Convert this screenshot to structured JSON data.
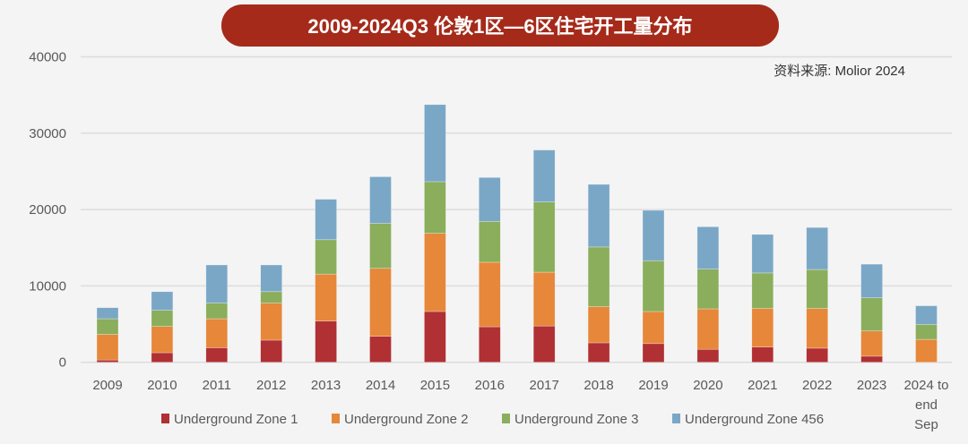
{
  "chart_data": {
    "type": "bar",
    "stacked": true,
    "title": "2009-2024Q3 伦敦1区—6区住宅开工量分布",
    "source": "资料来源: Molior 2024",
    "xlabel": "",
    "ylabel": "",
    "ylim": [
      0,
      40000
    ],
    "yticks": [
      "0",
      "10000",
      "20000",
      "30000",
      "40000"
    ],
    "grid": true,
    "legend_position": "bottom",
    "categories": [
      "2009",
      "2010",
      "2011",
      "2012",
      "2013",
      "2014",
      "2015",
      "2016",
      "2017",
      "2018",
      "2019",
      "2020",
      "2021",
      "2022",
      "2023",
      [
        "2024 to",
        "end",
        "Sep"
      ]
    ],
    "series": [
      {
        "name": "Underground Zone 1",
        "color": "#b03034",
        "values": [
          300,
          1250,
          1900,
          2900,
          5400,
          3400,
          6650,
          4650,
          4750,
          2550,
          2450,
          1700,
          2000,
          1850,
          800,
          0
        ]
      },
      {
        "name": "Underground Zone 2",
        "color": "#e6873a",
        "values": [
          3350,
          3450,
          3800,
          4850,
          6150,
          8900,
          10250,
          8450,
          7050,
          4750,
          4200,
          5300,
          5050,
          5200,
          3300,
          3000
        ]
      },
      {
        "name": "Underground Zone 3",
        "color": "#8aae5c",
        "values": [
          2050,
          2100,
          2050,
          1500,
          4500,
          5900,
          6750,
          5350,
          9200,
          7800,
          6650,
          5200,
          4650,
          5100,
          4350,
          1950
        ]
      },
      {
        "name": "Underground Zone 456",
        "color": "#7ba7c7",
        "values": [
          1450,
          2450,
          5000,
          3500,
          5300,
          6100,
          10100,
          5750,
          6800,
          8200,
          6600,
          5550,
          5050,
          5500,
          4400,
          2450
        ]
      }
    ]
  }
}
